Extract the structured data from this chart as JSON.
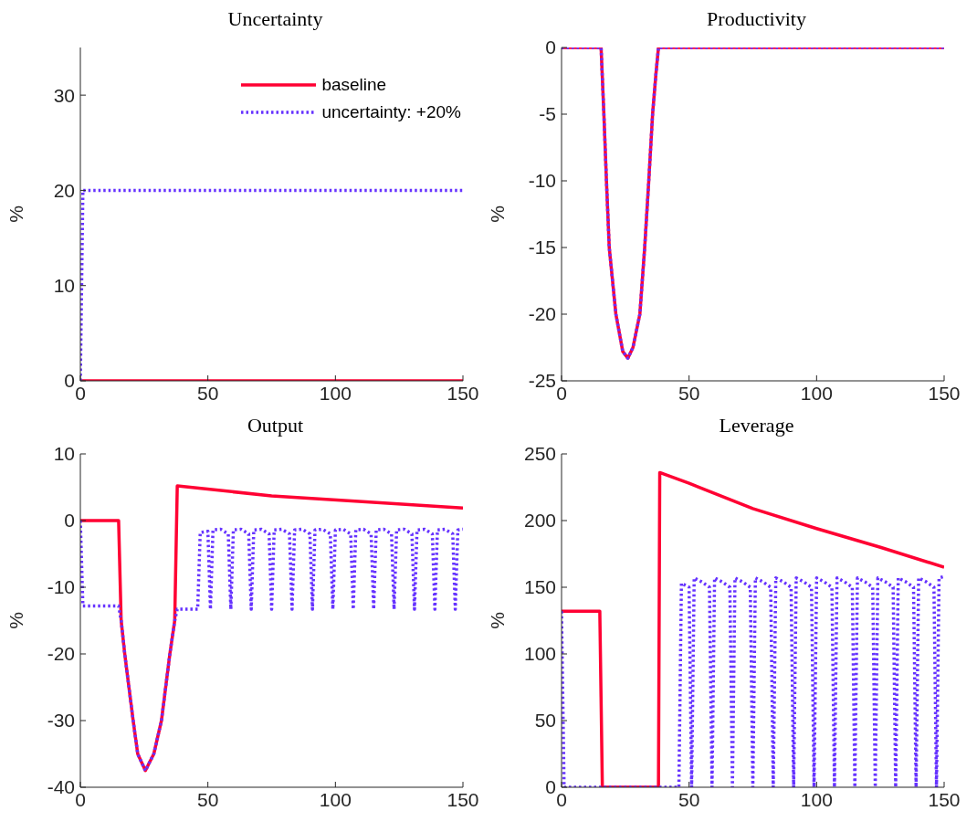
{
  "chart_data": [
    {
      "type": "line",
      "title": "Uncertainty",
      "ylabel": "%",
      "xlim": [
        0,
        150
      ],
      "xticks": [
        0,
        50,
        100,
        150
      ],
      "ylim": [
        0,
        35
      ],
      "yticks": [
        0,
        10,
        20,
        30
      ],
      "legend": "top right",
      "grid": false,
      "series": [
        {
          "name": "baseline",
          "color": "#ff0033",
          "line_style": "solid",
          "x": [
            0,
            150
          ],
          "values": [
            0,
            0
          ]
        },
        {
          "name": "uncertainty: +20%",
          "color": "#6633ff",
          "line_style": "dotted",
          "x": [
            0,
            1,
            150
          ],
          "values": [
            0,
            20,
            20
          ]
        }
      ]
    },
    {
      "type": "line",
      "title": "Productivity",
      "ylabel": "%",
      "xlim": [
        0,
        150
      ],
      "xticks": [
        0,
        50,
        100,
        150
      ],
      "ylim": [
        -25,
        0
      ],
      "yticks": [
        -25,
        -20,
        -15,
        -10,
        -5,
        0
      ],
      "grid": false,
      "series": [
        {
          "color": "#ff0033",
          "line_style": "solid",
          "x": [
            0,
            15.5,
            16.6,
            17.6,
            18.7,
            21.3,
            24,
            26,
            28,
            30.7,
            32.6,
            34.2,
            35.7,
            37,
            38,
            150
          ],
          "values": [
            0,
            0,
            -5,
            -10,
            -15,
            -20,
            -22.8,
            -23.3,
            -22.5,
            -20,
            -15,
            -10,
            -5,
            -2,
            0,
            0
          ]
        },
        {
          "color": "#6633ff",
          "line_style": "dotted",
          "x": [
            0,
            15.5,
            16.6,
            17.6,
            18.7,
            21.3,
            24,
            26,
            28,
            30.7,
            32.6,
            34.2,
            35.7,
            37,
            38,
            150
          ],
          "values": [
            0,
            0,
            -5,
            -10,
            -15,
            -20,
            -22.8,
            -23.3,
            -22.5,
            -20,
            -15,
            -10,
            -5,
            -2,
            0,
            0
          ]
        }
      ]
    },
    {
      "type": "line",
      "title": "Output",
      "ylabel": "%",
      "xlim": [
        0,
        150
      ],
      "xticks": [
        0,
        50,
        100,
        150
      ],
      "ylim": [
        -40,
        10
      ],
      "yticks": [
        -40,
        -30,
        -20,
        -10,
        0,
        10
      ],
      "grid": false,
      "series": [
        {
          "color": "#ff0033",
          "line_style": "solid",
          "x": [
            0,
            15,
            16,
            17.4,
            20.7,
            22.5,
            25.5,
            28.8,
            31.8,
            35.1,
            37,
            38,
            75,
            112,
            150
          ],
          "values": [
            0,
            0,
            -15,
            -20,
            -30,
            -35,
            -37.5,
            -35,
            -30,
            -20,
            -15,
            5.2,
            3.7,
            2.8,
            1.9
          ]
        },
        {
          "color": "#6633ff",
          "line_style": "dotted",
          "x": [
            0,
            1,
            15,
            16,
            17.4,
            20.7,
            22.5,
            25.5,
            28.8,
            31.8,
            35.1,
            37,
            38,
            46,
            47,
            50,
            51,
            52,
            55,
            58,
            59,
            60,
            63,
            66,
            67,
            68,
            71,
            74,
            75,
            76,
            79,
            82,
            83,
            84,
            87,
            90,
            91,
            92,
            95,
            98,
            99,
            100,
            103,
            106,
            107,
            108,
            111,
            114,
            115,
            116,
            119,
            122,
            123,
            124,
            127,
            130,
            131,
            132,
            135,
            138,
            139,
            140,
            143,
            146,
            147,
            148,
            150
          ],
          "values": [
            0,
            -12.8,
            -12.8,
            -15,
            -20,
            -30,
            -35,
            -37.5,
            -35,
            -30,
            -20,
            -15,
            -13.3,
            -13.3,
            -1.8,
            -1.6,
            -13.3,
            -1.4,
            -1.3,
            -2,
            -13.3,
            -1.4,
            -1.3,
            -2,
            -13.3,
            -1.4,
            -1.3,
            -2,
            -13.3,
            -1.4,
            -1.3,
            -2,
            -13.3,
            -1.4,
            -1.3,
            -2,
            -13.3,
            -1.4,
            -1.3,
            -2,
            -13.3,
            -1.4,
            -1.3,
            -2,
            -13.3,
            -1.4,
            -1.3,
            -2,
            -13.3,
            -1.4,
            -1.3,
            -2,
            -13.3,
            -1.4,
            -1.3,
            -2,
            -13.3,
            -1.4,
            -1.3,
            -2,
            -13.3,
            -1.4,
            -1.3,
            -2,
            -13.3,
            -1.4,
            -1.3
          ]
        }
      ]
    },
    {
      "type": "line",
      "title": "Leverage",
      "ylabel": "%",
      "xlim": [
        0,
        150
      ],
      "xticks": [
        0,
        50,
        100,
        150
      ],
      "ylim": [
        0,
        250
      ],
      "yticks": [
        0,
        50,
        100,
        150,
        200,
        250
      ],
      "grid": false,
      "series": [
        {
          "color": "#ff0033",
          "line_style": "solid",
          "x": [
            0,
            15,
            16,
            38,
            38.5,
            50,
            75,
            100,
            125,
            150
          ],
          "values": [
            132,
            132,
            0,
            0,
            236,
            228,
            209,
            194,
            180,
            165
          ]
        },
        {
          "color": "#6633ff",
          "line_style": "dotted",
          "x": [
            0,
            1,
            46,
            47,
            50,
            51,
            52,
            55,
            58,
            59,
            60,
            63,
            66,
            67,
            68,
            71,
            74,
            75,
            76,
            79,
            82,
            83,
            84,
            87,
            90,
            91,
            92,
            95,
            98,
            99,
            100,
            103,
            106,
            107,
            108,
            111,
            114,
            115,
            116,
            119,
            122,
            123,
            124,
            127,
            130,
            131,
            132,
            135,
            138,
            139,
            140,
            143,
            146,
            147,
            148,
            150
          ],
          "values": [
            132,
            0,
            0,
            153,
            150,
            0,
            157,
            154,
            150,
            0,
            157,
            154,
            150,
            0,
            157,
            154,
            150,
            0,
            157,
            154,
            150,
            0,
            157,
            154,
            150,
            0,
            157,
            154,
            150,
            0,
            157,
            154,
            150,
            0,
            157,
            154,
            150,
            0,
            157,
            154,
            150,
            0,
            157,
            154,
            150,
            0,
            157,
            154,
            150,
            0,
            157,
            154,
            150,
            0,
            157,
            158
          ]
        }
      ]
    }
  ]
}
